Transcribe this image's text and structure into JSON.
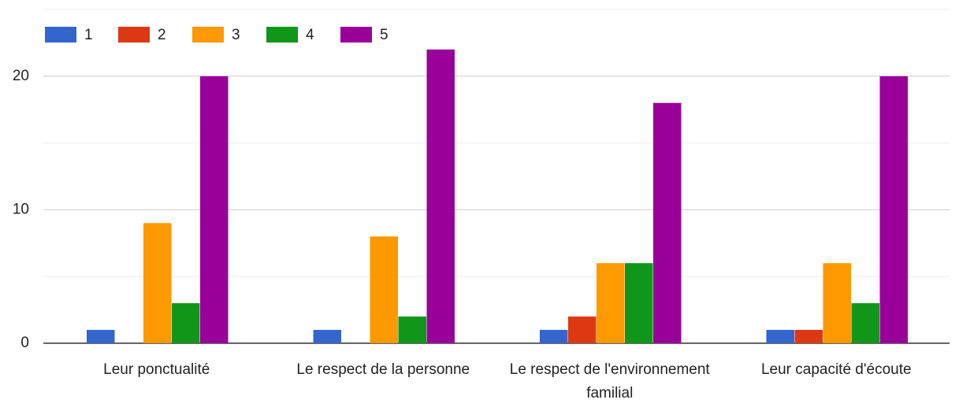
{
  "chart_data": {
    "type": "bar",
    "categories": [
      "Leur ponctualité",
      "Le respect de la personne",
      "Le respect de l'environnement familial",
      "Leur capacité d'écoute"
    ],
    "series": [
      {
        "name": "1",
        "color": "#3366cc",
        "values": [
          1,
          1,
          1,
          1
        ]
      },
      {
        "name": "2",
        "color": "#dc3912",
        "values": [
          0,
          0,
          2,
          1
        ]
      },
      {
        "name": "3",
        "color": "#ff9900",
        "values": [
          9,
          8,
          6,
          6
        ]
      },
      {
        "name": "4",
        "color": "#109618",
        "values": [
          3,
          2,
          6,
          3
        ]
      },
      {
        "name": "5",
        "color": "#990099",
        "values": [
          20,
          22,
          18,
          20
        ]
      }
    ],
    "ylim": [
      0,
      25
    ],
    "yticks": [
      0,
      10,
      20
    ],
    "minor_yticks": [
      5,
      15,
      25
    ],
    "grid": true,
    "legend": "top"
  }
}
